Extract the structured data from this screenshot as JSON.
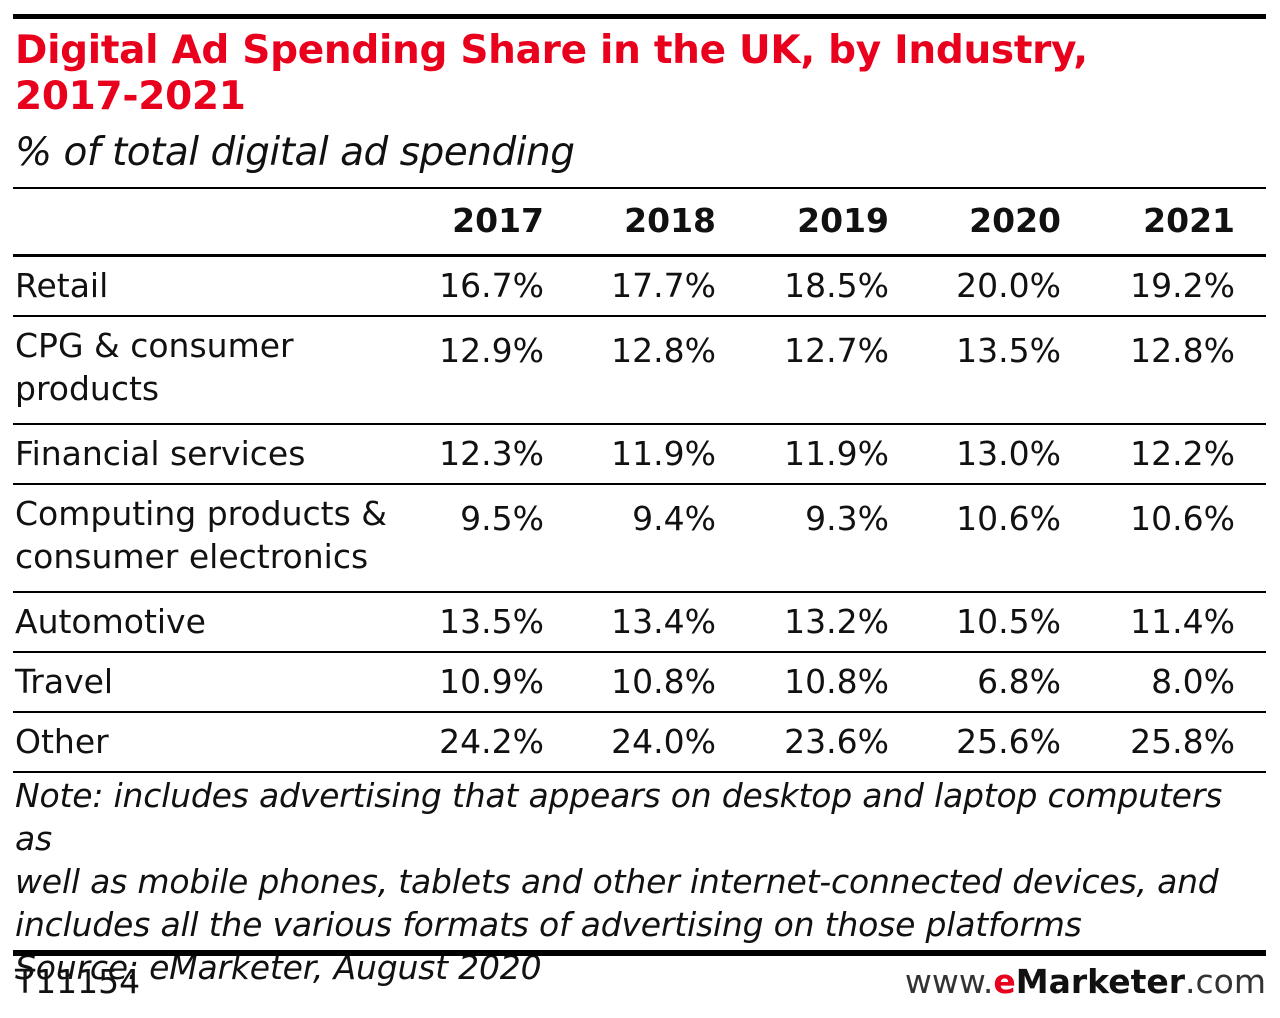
{
  "chart_data": {
    "type": "table",
    "title": "Digital Ad Spending Share in the UK, by Industry, 2017-2021",
    "subtitle": "% of total digital ad spending",
    "columns": [
      "2017",
      "2018",
      "2019",
      "2020",
      "2021"
    ],
    "rows": [
      {
        "label_lines": [
          "Retail"
        ],
        "values": [
          "16.7%",
          "17.7%",
          "18.5%",
          "20.0%",
          "19.2%"
        ]
      },
      {
        "label_lines": [
          "CPG & consumer",
          "products"
        ],
        "values": [
          "12.9%",
          "12.8%",
          "12.7%",
          "13.5%",
          "12.8%"
        ]
      },
      {
        "label_lines": [
          "Financial services"
        ],
        "values": [
          "12.3%",
          "11.9%",
          "11.9%",
          "13.0%",
          "12.2%"
        ]
      },
      {
        "label_lines": [
          "Computing products &",
          "consumer electronics"
        ],
        "values": [
          "9.5%",
          "9.4%",
          "9.3%",
          "10.6%",
          "10.6%"
        ]
      },
      {
        "label_lines": [
          "Automotive"
        ],
        "values": [
          "13.5%",
          "13.4%",
          "13.2%",
          "10.5%",
          "11.4%"
        ]
      },
      {
        "label_lines": [
          "Travel"
        ],
        "values": [
          "10.9%",
          "10.8%",
          "10.8%",
          "6.8%",
          "8.0%"
        ]
      },
      {
        "label_lines": [
          "Other"
        ],
        "values": [
          "24.2%",
          "24.0%",
          "23.6%",
          "25.6%",
          "25.8%"
        ]
      }
    ]
  },
  "title_lines": [
    "Digital Ad Spending Share in the UK, by Industry,",
    "2017-2021"
  ],
  "note_lines": [
    "Note: includes advertising that appears on desktop and laptop computers as",
    "well as mobile phones, tablets and other internet-connected devices, and",
    "includes all the various formats of advertising on those platforms",
    "Source: eMarketer, August 2020"
  ],
  "footer": {
    "code": "T11154",
    "brand_prefix": "www.",
    "brand_e": "e",
    "brand_name": "Marketer",
    "brand_suffix": ".com"
  },
  "colors": {
    "title": "#e8001c",
    "rules": "#000000"
  }
}
